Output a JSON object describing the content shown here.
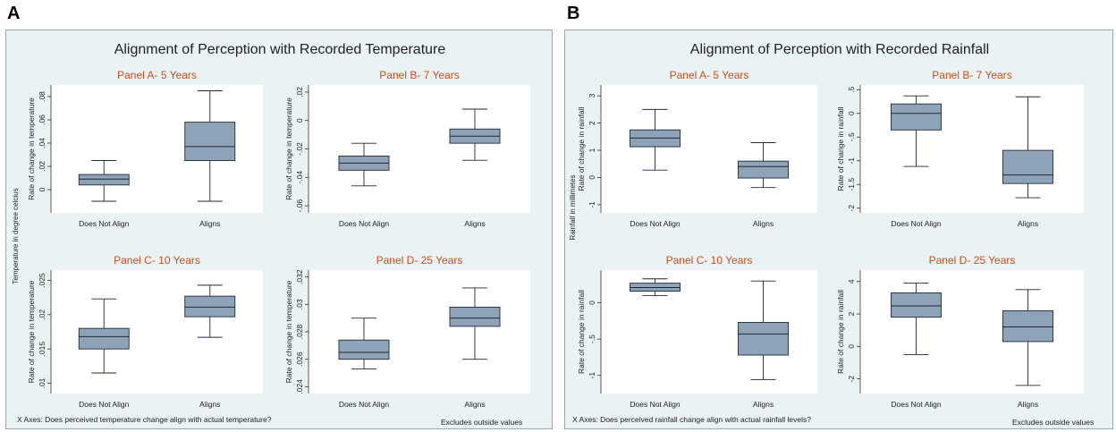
{
  "figure_a": {
    "letter": "A",
    "title": "Alignment of Perception with Recorded Temperature",
    "y_title": "Temperature in degree celcius",
    "x_note": "X Axes: Does perceived temperature change align with actual temperature?",
    "footnote": "Excludes outside values"
  },
  "figure_b": {
    "letter": "B",
    "title": "Alignment of Perception with Recorded Rainfall",
    "y_title": "Rainfall in millimetes",
    "x_note": "X Axes: Does perceived rainfall change align with actual rainfall levels?",
    "footnote": "Excludes outside values"
  },
  "colors": {
    "panel_title": "#c8511d",
    "box_fill": "#8fa3b8",
    "box_stroke": "#1f2a36",
    "plot_bg": "#ffffff",
    "outer_bg": "#eaf2f3"
  },
  "chart_data": [
    {
      "figure": "A",
      "type": "box",
      "title": "Panel A- 5 Years",
      "ylabel": "Rate of change in temperature",
      "categories": [
        "Does Not Align",
        "Aligns"
      ],
      "ylim": [
        -0.02,
        0.09
      ],
      "yticks": [
        0,
        0.02,
        0.04,
        0.06,
        0.08
      ],
      "ytick_labels": [
        "0",
        ".02",
        ".04",
        ".06",
        ".08"
      ],
      "boxes": [
        {
          "whisker_low": -0.01,
          "q1": 0.004,
          "median": 0.009,
          "q3": 0.013,
          "whisker_high": 0.025
        },
        {
          "whisker_low": -0.01,
          "q1": 0.025,
          "median": 0.037,
          "q3": 0.058,
          "whisker_high": 0.085
        }
      ]
    },
    {
      "figure": "A",
      "type": "box",
      "title": "Panel B- 7 Years",
      "ylabel": "Rate of change in temperature",
      "categories": [
        "Does Not Align",
        "Aligns"
      ],
      "ylim": [
        -0.065,
        0.025
      ],
      "yticks": [
        -0.06,
        -0.04,
        -0.02,
        0,
        0.02
      ],
      "ytick_labels": [
        "-.06",
        "-.04",
        "-.02",
        "0",
        ".02"
      ],
      "boxes": [
        {
          "whisker_low": -0.046,
          "q1": -0.035,
          "median": -0.03,
          "q3": -0.025,
          "whisker_high": -0.016
        },
        {
          "whisker_low": -0.028,
          "q1": -0.016,
          "median": -0.011,
          "q3": -0.006,
          "whisker_high": 0.008
        }
      ]
    },
    {
      "figure": "A",
      "type": "box",
      "title": "Panel C- 10 Years",
      "ylabel": "Rate of change in temperature",
      "categories": [
        "Does Not Align",
        "Aligns"
      ],
      "ylim": [
        0.0085,
        0.0265
      ],
      "yticks": [
        0.01,
        0.015,
        0.02,
        0.025
      ],
      "ytick_labels": [
        ".01",
        ".015",
        ".02",
        ".025"
      ],
      "boxes": [
        {
          "whisker_low": 0.0115,
          "q1": 0.015,
          "median": 0.0168,
          "q3": 0.018,
          "whisker_high": 0.0223
        },
        {
          "whisker_low": 0.0167,
          "q1": 0.0197,
          "median": 0.0211,
          "q3": 0.0227,
          "whisker_high": 0.0243
        }
      ]
    },
    {
      "figure": "A",
      "type": "box",
      "title": "Panel D- 25 Years",
      "ylabel": "Rate of change in temperature",
      "categories": [
        "Does Not Align",
        "Aligns"
      ],
      "ylim": [
        0.0235,
        0.0325
      ],
      "yticks": [
        0.024,
        0.026,
        0.028,
        0.03,
        0.032
      ],
      "ytick_labels": [
        ".024",
        ".026",
        ".028",
        ".03",
        ".032"
      ],
      "boxes": [
        {
          "whisker_low": 0.0253,
          "q1": 0.026,
          "median": 0.0265,
          "q3": 0.0274,
          "whisker_high": 0.029
        },
        {
          "whisker_low": 0.026,
          "q1": 0.0284,
          "median": 0.029,
          "q3": 0.0298,
          "whisker_high": 0.0312
        }
      ]
    },
    {
      "figure": "B",
      "type": "box",
      "title": "Panel A- 5 Years",
      "ylabel": "Rate of change in rainfall",
      "categories": [
        "Does Not Align",
        "Aligns"
      ],
      "ylim": [
        -1.3,
        3.4
      ],
      "yticks": [
        -1,
        0,
        1,
        2,
        3
      ],
      "ytick_labels": [
        "-1",
        "0",
        "1",
        "2",
        "3"
      ],
      "boxes": [
        {
          "whisker_low": 0.27,
          "q1": 1.13,
          "median": 1.45,
          "q3": 1.75,
          "whisker_high": 2.5
        },
        {
          "whisker_low": -0.37,
          "q1": -0.02,
          "median": 0.4,
          "q3": 0.6,
          "whisker_high": 1.28
        }
      ]
    },
    {
      "figure": "B",
      "type": "box",
      "title": "Panel B- 7 Years",
      "ylabel": "Rate of change in rainfall",
      "categories": [
        "Does Not Align",
        "Aligns"
      ],
      "ylim": [
        -2.1,
        0.6
      ],
      "yticks": [
        -2,
        -1.5,
        -1,
        -0.5,
        0,
        0.5
      ],
      "ytick_labels": [
        "-2",
        "-1.5",
        "-1",
        "-.5",
        "0",
        ".5"
      ],
      "boxes": [
        {
          "whisker_low": -1.12,
          "q1": -0.35,
          "median": 0.0,
          "q3": 0.2,
          "whisker_high": 0.37
        },
        {
          "whisker_low": -1.78,
          "q1": -1.48,
          "median": -1.3,
          "q3": -0.78,
          "whisker_high": 0.35
        }
      ]
    },
    {
      "figure": "B",
      "type": "box",
      "title": "Panel C- 10 Years",
      "ylabel": "Rate of change in rainfall",
      "categories": [
        "Does Not Align",
        "Aligns"
      ],
      "ylim": [
        -1.25,
        0.45
      ],
      "yticks": [
        -1,
        -0.5,
        0
      ],
      "ytick_labels": [
        "-1",
        "-.5",
        "0"
      ],
      "boxes": [
        {
          "whisker_low": 0.1,
          "q1": 0.16,
          "median": 0.21,
          "q3": 0.27,
          "whisker_high": 0.33
        },
        {
          "whisker_low": -1.06,
          "q1": -0.72,
          "median": -0.43,
          "q3": -0.27,
          "whisker_high": 0.3
        }
      ]
    },
    {
      "figure": "B",
      "type": "box",
      "title": "Panel D- 25 Years",
      "ylabel": "Rate of change in rainfall",
      "categories": [
        "Does Not Align",
        "Aligns"
      ],
      "ylim": [
        -2.9,
        4.7
      ],
      "yticks": [
        -2,
        0,
        2,
        4
      ],
      "ytick_labels": [
        "-2",
        "0",
        "2",
        "4"
      ],
      "boxes": [
        {
          "whisker_low": -0.5,
          "q1": 1.8,
          "median": 2.5,
          "q3": 3.3,
          "whisker_high": 3.9
        },
        {
          "whisker_low": -2.4,
          "q1": 0.3,
          "median": 1.2,
          "q3": 2.2,
          "whisker_high": 3.5
        }
      ]
    }
  ]
}
